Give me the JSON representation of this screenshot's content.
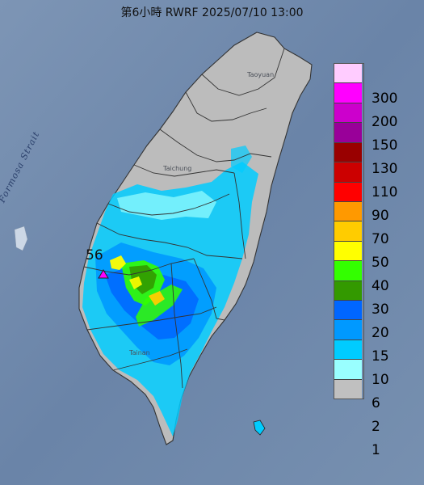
{
  "title": "第6小時  RWRF 2025/07/10 13:00",
  "map": {
    "strait_label": "Formosa Strait",
    "max_station": {
      "value": "56",
      "marker": "triangle-marker"
    },
    "cities": [
      "Taoyuan",
      "Taichung",
      "Tainan"
    ]
  },
  "legend": {
    "unit_labels": [
      "300",
      "200",
      "150",
      "130",
      "110",
      "90",
      "70",
      "50",
      "40",
      "30",
      "20",
      "15",
      "10",
      "6",
      "2",
      "1"
    ],
    "colors": [
      "#ffccff",
      "#ff00ff",
      "#cc00cc",
      "#990099",
      "#990000",
      "#cc0000",
      "#ff0000",
      "#ff9900",
      "#ffcc00",
      "#ffff00",
      "#33ff00",
      "#339900",
      "#0066ff",
      "#0099ff",
      "#00ccff",
      "#99ffff",
      "#c0c0c0"
    ]
  }
}
